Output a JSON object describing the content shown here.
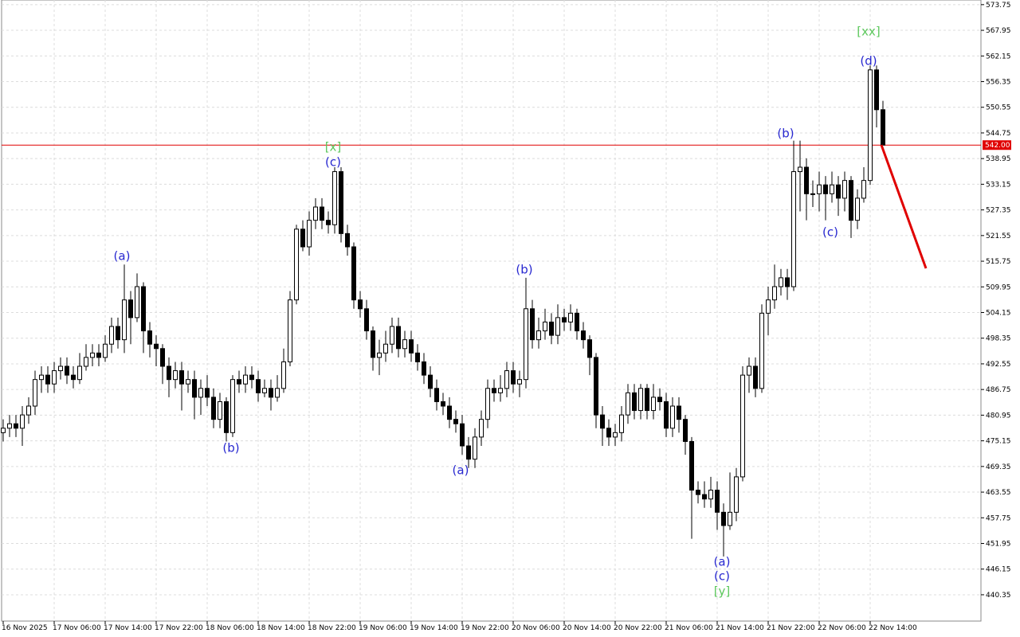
{
  "chart_data": {
    "type": "candlestick",
    "categories": [
      "16 Nov 2025",
      null,
      null,
      null,
      null,
      null,
      null,
      null,
      "17 Nov 06:00",
      null,
      null,
      null,
      null,
      null,
      null,
      null,
      "17 Nov 14:00",
      null,
      null,
      null,
      null,
      null,
      null,
      null,
      "17 Nov 22:00",
      null,
      null,
      null,
      null,
      null,
      null,
      null,
      "18 Nov 06:00",
      null,
      null,
      null,
      null,
      null,
      null,
      null,
      "18 Nov 14:00",
      null,
      null,
      null,
      null,
      null,
      null,
      null,
      "18 Nov 22:00",
      null,
      null,
      null,
      null,
      null,
      null,
      null,
      "19 Nov 06:00",
      null,
      null,
      null,
      null,
      null,
      null,
      null,
      "19 Nov 14:00",
      null,
      null,
      null,
      null,
      null,
      null,
      null,
      "19 Nov 22:00",
      null,
      null,
      null,
      null,
      null,
      null,
      null,
      "20 Nov 06:00",
      null,
      null,
      null,
      null,
      null,
      null,
      null,
      "20 Nov 14:00",
      null,
      null,
      null,
      null,
      null,
      null,
      null,
      "20 Nov 22:00",
      null,
      null,
      null,
      null,
      null,
      null,
      null,
      "21 Nov 06:00",
      null,
      null,
      null,
      null,
      null,
      null,
      null,
      "21 Nov 14:00",
      null,
      null,
      null,
      null,
      null,
      null,
      null,
      "21 Nov 22:00",
      null,
      null,
      null,
      null,
      null,
      null,
      null,
      "22 Nov 06:00",
      null,
      null,
      null,
      null,
      null,
      null,
      null,
      "22 Nov 14:00",
      null,
      null
    ],
    "open": [
      477,
      478,
      479,
      478,
      481,
      483,
      489,
      490,
      488,
      491,
      492,
      490,
      489,
      492,
      494,
      495,
      494,
      497,
      501,
      498,
      507,
      503,
      510,
      500,
      497,
      496,
      492,
      489,
      491,
      488,
      489,
      485,
      487,
      485,
      480,
      484,
      477,
      489,
      488,
      490,
      489,
      486,
      487,
      485,
      487,
      493,
      507,
      523,
      519,
      525,
      528,
      525,
      524,
      536,
      522,
      519,
      507,
      505,
      500,
      494,
      495,
      497,
      501,
      496,
      498,
      495,
      493,
      490,
      487,
      484,
      483,
      480,
      479,
      474,
      471,
      476,
      480,
      487,
      486,
      487,
      491,
      488,
      489,
      505,
      498,
      500,
      502,
      499,
      503,
      502,
      504,
      500,
      498,
      494,
      481,
      478,
      476,
      477,
      481,
      486,
      482,
      487,
      482,
      485,
      484,
      478,
      483,
      480,
      475,
      464,
      463,
      462,
      464,
      459,
      456,
      459,
      467,
      490,
      492,
      487,
      504,
      507,
      510,
      512,
      510,
      536,
      537,
      531,
      531,
      533,
      531,
      533,
      530,
      534,
      525,
      530,
      534,
      559,
      550
    ],
    "high": [
      480,
      481,
      481,
      483,
      485,
      491,
      492,
      492,
      493,
      494,
      494,
      492,
      495,
      497,
      497,
      497,
      499,
      503,
      503,
      515,
      509,
      513,
      511,
      502,
      499,
      497,
      494,
      493,
      493,
      491,
      491,
      489,
      490,
      487,
      486,
      485,
      490,
      491,
      492,
      492,
      491,
      489,
      489,
      490,
      496,
      509,
      524,
      525,
      527,
      530,
      530,
      527,
      537,
      537,
      524,
      520,
      509,
      507,
      501,
      498,
      500,
      503,
      503,
      500,
      500,
      497,
      495,
      492,
      489,
      486,
      485,
      482,
      481,
      476,
      478,
      482,
      489,
      489,
      490,
      493,
      493,
      491,
      512,
      507,
      503,
      505,
      504,
      506,
      505,
      506,
      505,
      502,
      499,
      495,
      483,
      480,
      479,
      483,
      488,
      488,
      488,
      488,
      488,
      487,
      486,
      485,
      485,
      481,
      476,
      466,
      466,
      467,
      466,
      461,
      468,
      469,
      492,
      494,
      494,
      506,
      510,
      515,
      514,
      514,
      543,
      543,
      539,
      534,
      536,
      535,
      536,
      535,
      536,
      535,
      532,
      537,
      560,
      560,
      552
    ],
    "low": [
      475,
      476,
      476,
      474,
      479,
      481,
      486,
      486,
      486,
      489,
      488,
      487,
      488,
      491,
      492,
      492,
      493,
      495,
      496,
      495,
      497,
      502,
      495,
      494,
      492,
      488,
      485,
      487,
      482,
      486,
      480,
      481,
      483,
      478,
      478,
      475,
      476,
      486,
      486,
      487,
      484,
      485,
      482,
      484,
      486,
      492,
      506,
      518,
      517,
      523,
      523,
      522,
      522,
      520,
      517,
      505,
      503,
      498,
      491,
      490,
      493,
      495,
      494,
      494,
      493,
      491,
      488,
      485,
      482,
      481,
      478,
      477,
      472,
      469,
      469,
      474,
      478,
      484,
      484,
      485,
      486,
      485,
      487,
      496,
      496,
      498,
      497,
      497,
      500,
      500,
      498,
      496,
      490,
      478,
      474,
      474,
      474,
      475,
      479,
      480,
      480,
      480,
      480,
      482,
      476,
      476,
      477,
      472,
      453,
      461,
      460,
      460,
      455,
      449,
      455,
      457,
      466,
      486,
      485,
      486,
      499,
      505,
      508,
      507,
      509,
      527,
      525,
      528,
      527,
      525,
      529,
      526,
      527,
      521,
      523,
      529,
      533,
      546,
      542
    ],
    "close": [
      478,
      479,
      478,
      481,
      483,
      489,
      490,
      488,
      491,
      492,
      490,
      489,
      492,
      494,
      495,
      494,
      497,
      501,
      498,
      507,
      503,
      510,
      500,
      497,
      496,
      492,
      489,
      491,
      488,
      489,
      485,
      487,
      485,
      480,
      484,
      477,
      489,
      488,
      490,
      489,
      486,
      487,
      485,
      487,
      493,
      507,
      523,
      519,
      525,
      528,
      525,
      524,
      536,
      522,
      519,
      507,
      505,
      500,
      494,
      495,
      497,
      501,
      496,
      498,
      495,
      493,
      490,
      487,
      484,
      483,
      480,
      479,
      474,
      471,
      476,
      480,
      487,
      486,
      487,
      491,
      488,
      489,
      505,
      498,
      500,
      502,
      499,
      503,
      502,
      504,
      500,
      498,
      494,
      481,
      478,
      476,
      477,
      481,
      486,
      482,
      487,
      482,
      485,
      484,
      478,
      483,
      480,
      475,
      464,
      463,
      462,
      464,
      459,
      456,
      459,
      467,
      490,
      492,
      487,
      504,
      507,
      510,
      512,
      510,
      536,
      537,
      531,
      531,
      533,
      531,
      533,
      530,
      534,
      525,
      530,
      534,
      559,
      550,
      542
    ],
    "ylim": [
      434.4,
      574.8
    ],
    "yticks": [
      573.75,
      567.95,
      562.15,
      556.35,
      550.55,
      544.75,
      538.95,
      533.15,
      527.35,
      521.55,
      515.75,
      509.95,
      504.15,
      498.35,
      492.55,
      486.75,
      480.95,
      475.15,
      469.35,
      463.55,
      457.75,
      451.95,
      446.15,
      440.35
    ],
    "grid": true,
    "bull_color": "#ffffff",
    "bear_color": "#000000",
    "level": {
      "value": 542,
      "label": "542.00",
      "color": "#e00000"
    },
    "annotations": [
      {
        "text": "(a)",
        "color": "#2828d0"
      },
      {
        "text": "(b)",
        "color": "#2828d0"
      },
      {
        "text": "[x]",
        "color": "#5cc85c"
      },
      {
        "text": "(c)",
        "color": "#2828d0"
      },
      {
        "text": "(a)",
        "color": "#2828d0"
      },
      {
        "text": "(b)",
        "color": "#2828d0"
      },
      {
        "text": "(b)",
        "color": "#2828d0"
      },
      {
        "text": "(c)",
        "color": "#2828d0"
      },
      {
        "text": "[xx]",
        "color": "#5cc85c"
      },
      {
        "text": "(d)",
        "color": "#2828d0"
      },
      {
        "text": "(a)",
        "color": "#2828d0"
      },
      {
        "text": "(c)",
        "color": "#2828d0"
      },
      {
        "text": "[y]",
        "color": "#5cc85c"
      }
    ]
  }
}
